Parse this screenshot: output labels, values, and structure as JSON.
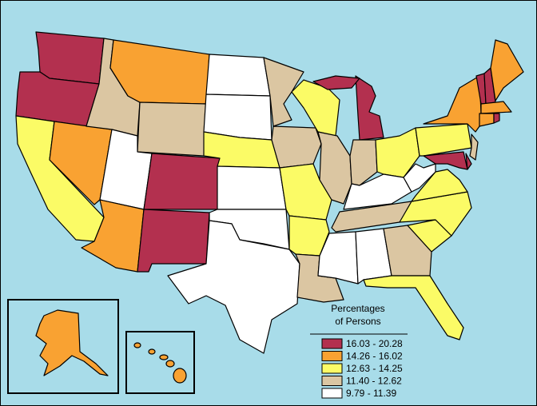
{
  "legend": {
    "title": [
      "Percentages",
      "of Persons"
    ],
    "items": [
      {
        "label": "16.03 - 20.28",
        "color": "#b3304f"
      },
      {
        "label": "14.26 - 16.02",
        "color": "#f9a232"
      },
      {
        "label": "12.63 - 14.25",
        "color": "#fbfb66"
      },
      {
        "label": "11.40 - 12.62",
        "color": "#dbc6a2"
      },
      {
        "label": "9.79 - 11.39",
        "color": "#ffffff"
      }
    ]
  }
}
